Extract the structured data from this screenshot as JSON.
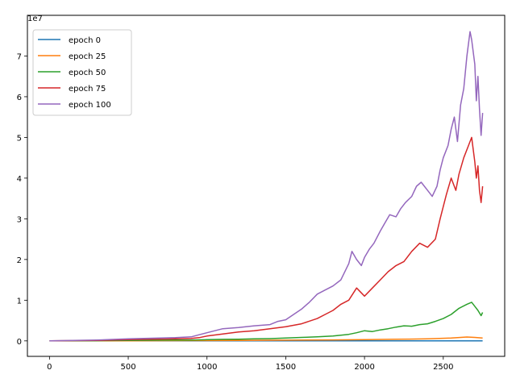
{
  "chart_data": {
    "type": "line",
    "title": "",
    "xlabel": "",
    "ylabel": "",
    "y_offset_label": "1e7",
    "xlim": [
      -140,
      2890
    ],
    "ylim": [
      -3800000,
      80000000
    ],
    "xticks": [
      0,
      500,
      1000,
      1500,
      2000,
      2500
    ],
    "xtick_labels": [
      "0",
      "500",
      "1000",
      "1500",
      "2000",
      "2500"
    ],
    "yticks": [
      0,
      10000000,
      20000000,
      30000000,
      40000000,
      50000000,
      60000000,
      70000000
    ],
    "ytick_labels": [
      "0",
      "1",
      "2",
      "3",
      "4",
      "5",
      "6",
      "7"
    ],
    "grid": false,
    "legend_position": "top-left",
    "series": [
      {
        "name": "epoch 0",
        "color": "#1f77b4",
        "x": [
          0,
          500,
          1000,
          1500,
          2000,
          2500,
          2750
        ],
        "y": [
          0,
          0,
          0,
          0,
          0,
          0,
          0
        ]
      },
      {
        "name": "epoch 25",
        "color": "#ff7f0e",
        "x": [
          0,
          300,
          500,
          800,
          1000,
          1200,
          1500,
          1800,
          2000,
          2200,
          2400,
          2550,
          2650,
          2700,
          2750
        ],
        "y": [
          0,
          10000,
          30000,
          60000,
          90000,
          120000,
          180000,
          250000,
          320000,
          400000,
          500000,
          700000,
          950000,
          850000,
          700000
        ]
      },
      {
        "name": "epoch 50",
        "color": "#2ca02c",
        "x": [
          0,
          300,
          500,
          800,
          900,
          1000,
          1100,
          1200,
          1300,
          1400,
          1500,
          1600,
          1700,
          1800,
          1900,
          1950,
          2000,
          2050,
          2100,
          2150,
          2200,
          2250,
          2300,
          2350,
          2400,
          2450,
          2500,
          2550,
          2600,
          2650,
          2680,
          2700,
          2720,
          2740,
          2750
        ],
        "y": [
          0,
          50000,
          100000,
          200000,
          220000,
          300000,
          380000,
          420000,
          500000,
          550000,
          700000,
          850000,
          1000000,
          1200000,
          1600000,
          2000000,
          2500000,
          2300000,
          2700000,
          3000000,
          3400000,
          3700000,
          3600000,
          4000000,
          4200000,
          4800000,
          5500000,
          6500000,
          8000000,
          9000000,
          9500000,
          8500000,
          7500000,
          6200000,
          7000000
        ]
      },
      {
        "name": "epoch 75",
        "color": "#d62728",
        "x": [
          0,
          300,
          500,
          800,
          900,
          950,
          1000,
          1100,
          1200,
          1300,
          1400,
          1500,
          1600,
          1700,
          1750,
          1800,
          1850,
          1900,
          1950,
          2000,
          2050,
          2100,
          2150,
          2200,
          2250,
          2300,
          2350,
          2400,
          2450,
          2480,
          2500,
          2520,
          2550,
          2580,
          2600,
          2630,
          2660,
          2680,
          2700,
          2710,
          2720,
          2730,
          2740,
          2750
        ],
        "y": [
          0,
          100000,
          300000,
          500000,
          600000,
          800000,
          1200000,
          1700000,
          2200000,
          2500000,
          3000000,
          3500000,
          4200000,
          5500000,
          6500000,
          7500000,
          9000000,
          10000000,
          13000000,
          11000000,
          13000000,
          15000000,
          17000000,
          18500000,
          19500000,
          22000000,
          24000000,
          23000000,
          25000000,
          30000000,
          33000000,
          36000000,
          40000000,
          37000000,
          41000000,
          45000000,
          48000000,
          50000000,
          44000000,
          40000000,
          43000000,
          37000000,
          34000000,
          38000000
        ]
      },
      {
        "name": "epoch 100",
        "color": "#9467bd",
        "x": [
          0,
          300,
          500,
          800,
          900,
          950,
          1000,
          1050,
          1100,
          1200,
          1300,
          1400,
          1450,
          1500,
          1550,
          1600,
          1650,
          1700,
          1750,
          1800,
          1850,
          1900,
          1920,
          1950,
          1980,
          2000,
          2030,
          2060,
          2100,
          2130,
          2160,
          2200,
          2230,
          2260,
          2300,
          2330,
          2360,
          2400,
          2430,
          2460,
          2480,
          2500,
          2530,
          2550,
          2570,
          2590,
          2610,
          2630,
          2650,
          2670,
          2680,
          2700,
          2710,
          2720,
          2730,
          2740,
          2750
        ],
        "y": [
          0,
          200000,
          500000,
          800000,
          1000000,
          1500000,
          2000000,
          2500000,
          3000000,
          3300000,
          3700000,
          4000000,
          4800000,
          5200000,
          6500000,
          7800000,
          9500000,
          11500000,
          12500000,
          13500000,
          15000000,
          19000000,
          22000000,
          20000000,
          18500000,
          20500000,
          22500000,
          24000000,
          27000000,
          29000000,
          31000000,
          30500000,
          32500000,
          34000000,
          35500000,
          38000000,
          39000000,
          37000000,
          35500000,
          38000000,
          42000000,
          45000000,
          48000000,
          52000000,
          55000000,
          49000000,
          58000000,
          62000000,
          70000000,
          76000000,
          74000000,
          68000000,
          59000000,
          65000000,
          57000000,
          50500000,
          56000000
        ]
      }
    ]
  }
}
